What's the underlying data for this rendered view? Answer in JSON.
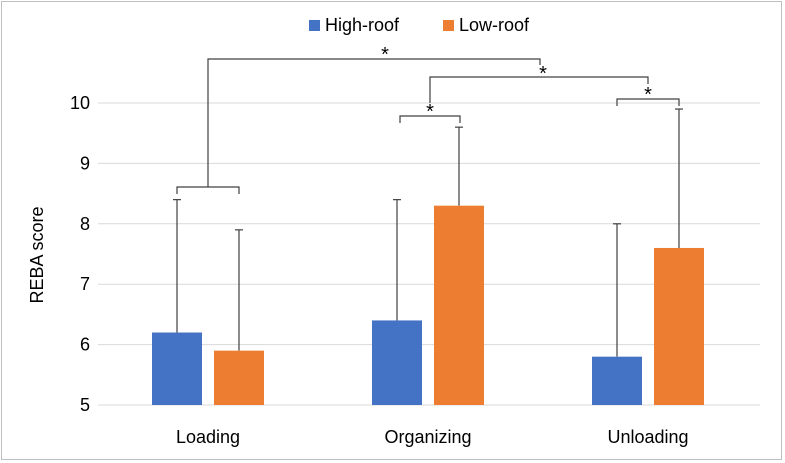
{
  "chart_data": {
    "type": "bar",
    "ylabel": "REBA score",
    "xlabel": "",
    "ylim": [
      5,
      10.5
    ],
    "yticks": [
      5,
      6,
      7,
      8,
      9,
      10
    ],
    "grid": true,
    "legend_position": "top-center",
    "categories": [
      "Loading",
      "Organizing",
      "Unloading"
    ],
    "series": [
      {
        "name": "High-roof",
        "color": "#4472C4",
        "values": [
          6.2,
          6.4,
          5.8
        ],
        "error_upper": [
          8.4,
          8.4,
          8.0
        ]
      },
      {
        "name": "Low-roof",
        "color": "#ED7D31",
        "values": [
          5.9,
          8.3,
          7.6
        ],
        "error_upper": [
          7.9,
          9.6,
          9.9
        ]
      }
    ],
    "annotations": [
      {
        "label": "*",
        "type": "bracket",
        "between": [
          "Loading",
          "Unloading"
        ]
      },
      {
        "label": "*",
        "type": "bracket",
        "between": [
          "Organizing",
          "Unloading"
        ]
      },
      {
        "label": "*",
        "type": "bracket",
        "between": [
          "Organizing:High-roof",
          "Organizing:Low-roof"
        ]
      },
      {
        "label": "*",
        "type": "bracket",
        "between": [
          "Unloading:High-roof",
          "Unloading:Low-roof"
        ]
      }
    ]
  }
}
